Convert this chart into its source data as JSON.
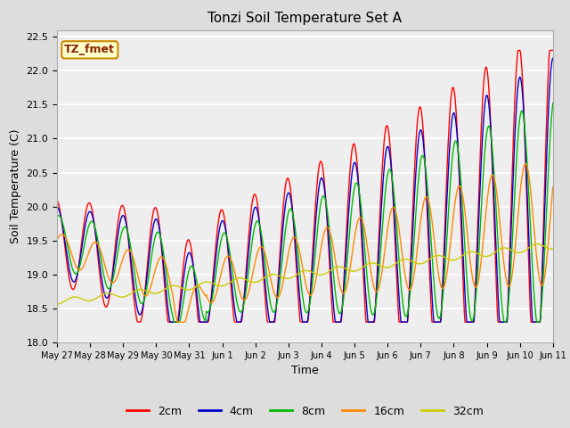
{
  "title": "Tonzi Soil Temperature Set A",
  "xlabel": "Time",
  "ylabel": "Soil Temperature (C)",
  "ylim": [
    18.0,
    22.6
  ],
  "yticks": [
    18.0,
    18.5,
    19.0,
    19.5,
    20.0,
    20.5,
    21.0,
    21.5,
    22.0,
    22.5
  ],
  "xtick_labels": [
    "May 27",
    "May 28",
    "May 29",
    "May 30",
    "May 31",
    "Jun 1",
    "Jun 2",
    "Jun 3",
    "Jun 4",
    "Jun 5",
    "Jun 6",
    "Jun 7",
    "Jun 8",
    "Jun 9",
    "Jun 10",
    "Jun 11"
  ],
  "line_colors": {
    "2cm": "#ff0000",
    "4cm": "#0000cc",
    "8cm": "#00bb00",
    "16cm": "#ff8800",
    "32cm": "#cccc00"
  },
  "annotation_text": "TZ_fmet",
  "annotation_box_color": "#ffffcc",
  "annotation_border_color": "#cc8800",
  "bg_color": "#dddddd",
  "plot_bg_color": "#eeeeee",
  "grid_color": "#ffffff",
  "title_fontsize": 11,
  "axis_fontsize": 9,
  "tick_fontsize": 8,
  "legend_fontsize": 9
}
